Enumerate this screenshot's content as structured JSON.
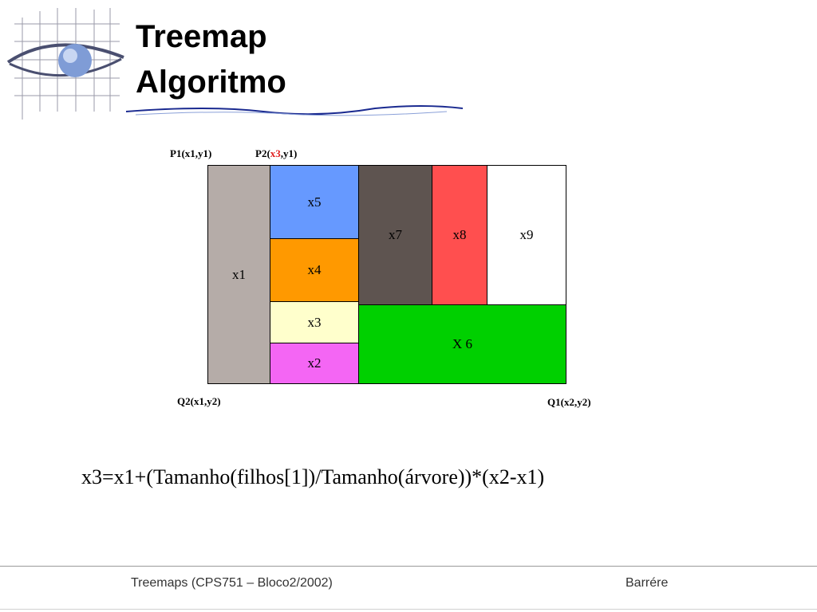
{
  "slide": {
    "title_line1": "Treemap",
    "title_line2": "Algoritmo"
  },
  "corners": {
    "p1": "P1(x1,y1)",
    "p2_prefix": "P2(",
    "p2_highlight": "x3",
    "p2_suffix": ",y1)",
    "q2": "Q2(x1,y2)",
    "q1": "Q1(x2,y2)"
  },
  "treemap": {
    "cells": [
      {
        "id": "x1",
        "label": "x1",
        "color": "#b5aca8"
      },
      {
        "id": "x5",
        "label": "x5",
        "color": "#6699ff"
      },
      {
        "id": "x4",
        "label": "x4",
        "color": "#ff9900"
      },
      {
        "id": "x3",
        "label": "x3",
        "color": "#ffffcc"
      },
      {
        "id": "x2",
        "label": "x2",
        "color": "#f466f4"
      },
      {
        "id": "x7",
        "label": "x7",
        "color": "#5e5450"
      },
      {
        "id": "x8",
        "label": "x8",
        "color": "#ff4f4f"
      },
      {
        "id": "x9",
        "label": "x9",
        "color": "#ffffff"
      },
      {
        "id": "x6",
        "label": "X 6",
        "color": "#00d000"
      }
    ]
  },
  "formula": "x3=x1+(Tamanho(filhos[1])/Tamanho(árvore))*(x2-x1)",
  "footer": {
    "left": "Treemaps (CPS751 – Bloco2/2002)",
    "right": "Barrére"
  },
  "colors": {
    "highlight": "#e02020"
  }
}
